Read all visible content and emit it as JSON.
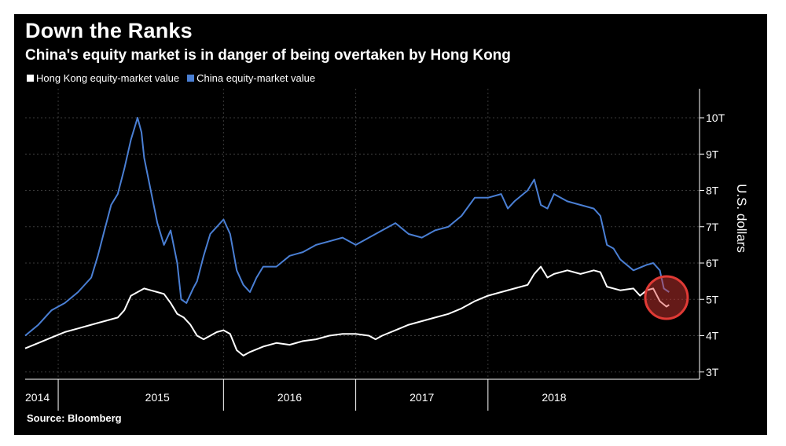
{
  "chart_data": {
    "type": "line",
    "title": "Down the Ranks",
    "subtitle": "China's equity market is in danger of being overtaken by Hong Kong",
    "ylabel": "U.S. dollars",
    "source": "Source: Bloomberg",
    "ylim": [
      2.8,
      10.8
    ],
    "y_ticks": [
      {
        "value": 3,
        "label": "3T"
      },
      {
        "value": 4,
        "label": "4T"
      },
      {
        "value": 5,
        "label": "5T"
      },
      {
        "value": 6,
        "label": "6T"
      },
      {
        "value": 7,
        "label": "7T"
      },
      {
        "value": 8,
        "label": "8T"
      },
      {
        "value": 9,
        "label": "9T"
      },
      {
        "value": 10,
        "label": "10T"
      }
    ],
    "xlim": [
      2014.0,
      2019.1
    ],
    "x_ticks": [
      {
        "value": 2014.0,
        "label": "2014"
      },
      {
        "value": 2015.0,
        "label": "2015"
      },
      {
        "value": 2016.0,
        "label": "2016"
      },
      {
        "value": 2017.0,
        "label": "2017"
      },
      {
        "value": 2018.0,
        "label": "2018"
      }
    ],
    "year_boundaries": [
      2014.25,
      2015.5,
      2016.5,
      2017.5
    ],
    "grid": true,
    "legend_position": "top-left",
    "series": [
      {
        "name": "Hong Kong equity-market value",
        "color": "#ffffff",
        "points": [
          [
            2014.0,
            3.65
          ],
          [
            2014.1,
            3.8
          ],
          [
            2014.2,
            3.95
          ],
          [
            2014.3,
            4.1
          ],
          [
            2014.4,
            4.2
          ],
          [
            2014.5,
            4.3
          ],
          [
            2014.6,
            4.4
          ],
          [
            2014.7,
            4.5
          ],
          [
            2014.75,
            4.7
          ],
          [
            2014.8,
            5.1
          ],
          [
            2014.85,
            5.2
          ],
          [
            2014.9,
            5.3
          ],
          [
            2014.95,
            5.25
          ],
          [
            2015.0,
            5.2
          ],
          [
            2015.05,
            5.15
          ],
          [
            2015.1,
            4.9
          ],
          [
            2015.15,
            4.6
          ],
          [
            2015.2,
            4.5
          ],
          [
            2015.25,
            4.3
          ],
          [
            2015.3,
            4.0
          ],
          [
            2015.35,
            3.9
          ],
          [
            2015.4,
            4.0
          ],
          [
            2015.45,
            4.1
          ],
          [
            2015.5,
            4.15
          ],
          [
            2015.55,
            4.05
          ],
          [
            2015.6,
            3.6
          ],
          [
            2015.65,
            3.45
          ],
          [
            2015.7,
            3.55
          ],
          [
            2015.8,
            3.7
          ],
          [
            2015.9,
            3.8
          ],
          [
            2016.0,
            3.75
          ],
          [
            2016.1,
            3.85
          ],
          [
            2016.2,
            3.9
          ],
          [
            2016.3,
            4.0
          ],
          [
            2016.4,
            4.05
          ],
          [
            2016.5,
            4.05
          ],
          [
            2016.6,
            4.0
          ],
          [
            2016.65,
            3.9
          ],
          [
            2016.7,
            4.0
          ],
          [
            2016.8,
            4.15
          ],
          [
            2016.9,
            4.3
          ],
          [
            2017.0,
            4.4
          ],
          [
            2017.1,
            4.5
          ],
          [
            2017.2,
            4.6
          ],
          [
            2017.3,
            4.75
          ],
          [
            2017.4,
            4.95
          ],
          [
            2017.5,
            5.1
          ],
          [
            2017.6,
            5.2
          ],
          [
            2017.7,
            5.3
          ],
          [
            2017.8,
            5.4
          ],
          [
            2017.85,
            5.7
          ],
          [
            2017.9,
            5.9
          ],
          [
            2017.95,
            5.6
          ],
          [
            2018.0,
            5.7
          ],
          [
            2018.1,
            5.8
          ],
          [
            2018.2,
            5.7
          ],
          [
            2018.3,
            5.8
          ],
          [
            2018.35,
            5.75
          ],
          [
            2018.4,
            5.35
          ],
          [
            2018.5,
            5.25
          ],
          [
            2018.6,
            5.3
          ],
          [
            2018.65,
            5.1
          ],
          [
            2018.7,
            5.25
          ],
          [
            2018.75,
            5.3
          ],
          [
            2018.8,
            4.95
          ],
          [
            2018.85,
            4.8
          ],
          [
            2018.87,
            4.85
          ]
        ]
      },
      {
        "name": "China equity-market value",
        "color": "#4a7fd4",
        "points": [
          [
            2014.0,
            4.0
          ],
          [
            2014.1,
            4.3
          ],
          [
            2014.2,
            4.7
          ],
          [
            2014.3,
            4.9
          ],
          [
            2014.4,
            5.2
          ],
          [
            2014.5,
            5.6
          ],
          [
            2014.55,
            6.2
          ],
          [
            2014.6,
            6.9
          ],
          [
            2014.65,
            7.6
          ],
          [
            2014.7,
            7.9
          ],
          [
            2014.75,
            8.6
          ],
          [
            2014.8,
            9.4
          ],
          [
            2014.85,
            10.0
          ],
          [
            2014.88,
            9.6
          ],
          [
            2014.9,
            8.9
          ],
          [
            2014.95,
            8.0
          ],
          [
            2015.0,
            7.1
          ],
          [
            2015.05,
            6.5
          ],
          [
            2015.1,
            6.9
          ],
          [
            2015.15,
            6.0
          ],
          [
            2015.18,
            5.0
          ],
          [
            2015.22,
            4.9
          ],
          [
            2015.27,
            5.3
          ],
          [
            2015.3,
            5.5
          ],
          [
            2015.35,
            6.2
          ],
          [
            2015.4,
            6.8
          ],
          [
            2015.45,
            7.0
          ],
          [
            2015.5,
            7.2
          ],
          [
            2015.55,
            6.8
          ],
          [
            2015.6,
            5.8
          ],
          [
            2015.65,
            5.4
          ],
          [
            2015.7,
            5.2
          ],
          [
            2015.75,
            5.6
          ],
          [
            2015.8,
            5.9
          ],
          [
            2015.9,
            5.9
          ],
          [
            2016.0,
            6.2
          ],
          [
            2016.1,
            6.3
          ],
          [
            2016.2,
            6.5
          ],
          [
            2016.3,
            6.6
          ],
          [
            2016.4,
            6.7
          ],
          [
            2016.5,
            6.5
          ],
          [
            2016.6,
            6.7
          ],
          [
            2016.7,
            6.9
          ],
          [
            2016.8,
            7.1
          ],
          [
            2016.9,
            6.8
          ],
          [
            2017.0,
            6.7
          ],
          [
            2017.1,
            6.9
          ],
          [
            2017.2,
            7.0
          ],
          [
            2017.3,
            7.3
          ],
          [
            2017.4,
            7.8
          ],
          [
            2017.5,
            7.8
          ],
          [
            2017.6,
            7.9
          ],
          [
            2017.65,
            7.5
          ],
          [
            2017.7,
            7.7
          ],
          [
            2017.8,
            8.0
          ],
          [
            2017.85,
            8.3
          ],
          [
            2017.9,
            7.6
          ],
          [
            2017.95,
            7.5
          ],
          [
            2018.0,
            7.9
          ],
          [
            2018.1,
            7.7
          ],
          [
            2018.2,
            7.6
          ],
          [
            2018.3,
            7.5
          ],
          [
            2018.35,
            7.3
          ],
          [
            2018.4,
            6.5
          ],
          [
            2018.45,
            6.4
          ],
          [
            2018.5,
            6.1
          ],
          [
            2018.6,
            5.8
          ],
          [
            2018.7,
            5.95
          ],
          [
            2018.75,
            6.0
          ],
          [
            2018.8,
            5.8
          ],
          [
            2018.83,
            5.3
          ],
          [
            2018.87,
            5.2
          ]
        ]
      }
    ],
    "annotation": {
      "type": "circle",
      "x": 2018.85,
      "y": 5.05,
      "color": "#e03a35"
    }
  }
}
